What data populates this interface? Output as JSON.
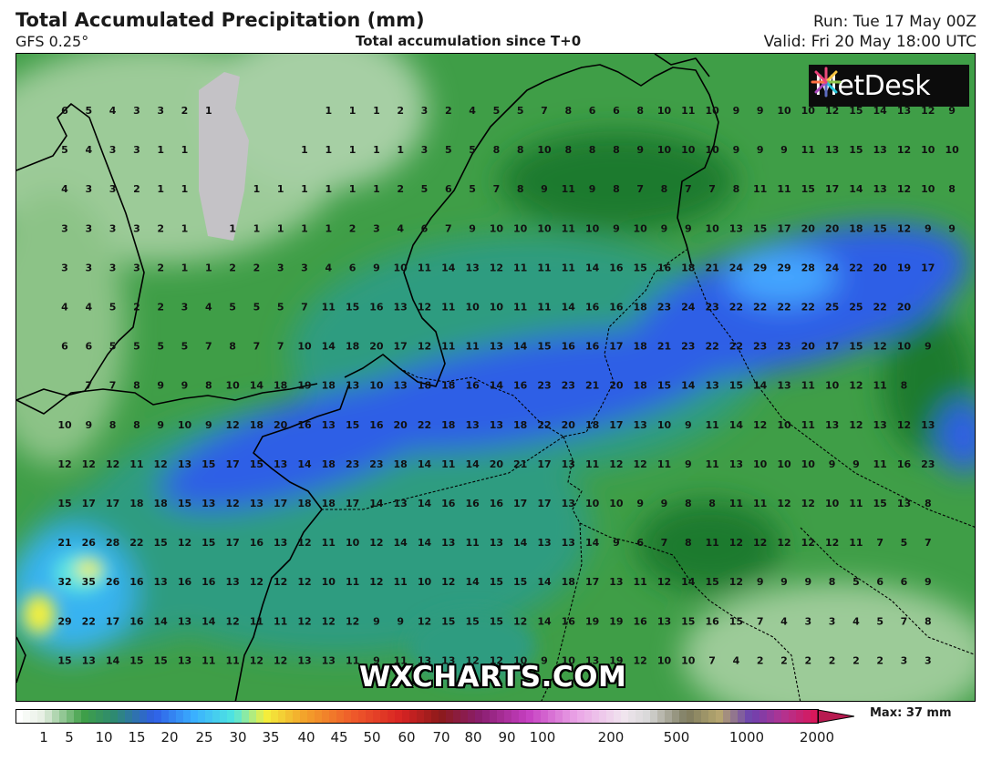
{
  "header": {
    "title": "Total Accumulated Precipitation (mm)",
    "model": "GFS 0.25°",
    "subtitle": "Total accumulation since T+0",
    "run": "Run: Tue 17 May 00Z",
    "valid": "Valid: Fri 20 May 18:00 UTC"
  },
  "logo": {
    "text": "MetDesk",
    "icon": "pinwheel-icon"
  },
  "watermark": "WXCHARTS.COM",
  "legend": {
    "max_label": "Max: 37 mm",
    "ticks": [
      "1",
      "5",
      "10",
      "15",
      "20",
      "25",
      "30",
      "35",
      "40",
      "45",
      "50",
      "60",
      "70",
      "80",
      "90",
      "100",
      "200",
      "500",
      "1000",
      "2000"
    ]
  },
  "colors": {
    "light_green": "#a6cfa4",
    "mid_green": "#3f9e47",
    "dark_green": "#1f7a2f",
    "teal": "#2e9c80",
    "blue": "#2f5ee6",
    "light_blue": "#44a6ff",
    "yellow": "#f4f03c",
    "grey": "#c4c2c6"
  },
  "grid_values": [
    [
      "6",
      "5",
      "4",
      "3",
      "3",
      "2",
      "1",
      "",
      "",
      "",
      "",
      "1",
      "1",
      "1",
      "2",
      "3",
      "2",
      "4",
      "5",
      "5",
      "7",
      "8",
      "6",
      "6",
      "8",
      "10",
      "11",
      "10",
      "9",
      "9",
      "10",
      "10",
      "12",
      "15",
      "14",
      "13",
      "12",
      "9"
    ],
    [
      "5",
      "4",
      "3",
      "3",
      "1",
      "1",
      "",
      "",
      "",
      "",
      "1",
      "1",
      "1",
      "1",
      "1",
      "3",
      "5",
      "5",
      "8",
      "8",
      "10",
      "8",
      "8",
      "8",
      "9",
      "10",
      "10",
      "10",
      "9",
      "9",
      "9",
      "11",
      "13",
      "15",
      "13",
      "12",
      "10",
      "10"
    ],
    [
      "4",
      "3",
      "3",
      "2",
      "1",
      "1",
      "",
      "",
      "1",
      "1",
      "1",
      "1",
      "1",
      "1",
      "2",
      "5",
      "6",
      "5",
      "7",
      "8",
      "9",
      "11",
      "9",
      "8",
      "7",
      "8",
      "7",
      "7",
      "8",
      "11",
      "11",
      "15",
      "17",
      "14",
      "13",
      "12",
      "10",
      "8"
    ],
    [
      "3",
      "3",
      "3",
      "3",
      "2",
      "1",
      "",
      "1",
      "1",
      "1",
      "1",
      "1",
      "2",
      "3",
      "4",
      "6",
      "7",
      "9",
      "10",
      "10",
      "10",
      "11",
      "10",
      "9",
      "10",
      "9",
      "9",
      "10",
      "13",
      "15",
      "17",
      "20",
      "20",
      "18",
      "15",
      "12",
      "9",
      "9"
    ],
    [
      "3",
      "3",
      "3",
      "3",
      "2",
      "1",
      "1",
      "2",
      "2",
      "3",
      "3",
      "4",
      "6",
      "9",
      "10",
      "11",
      "14",
      "13",
      "12",
      "11",
      "11",
      "11",
      "14",
      "16",
      "15",
      "16",
      "18",
      "21",
      "24",
      "29",
      "29",
      "28",
      "24",
      "22",
      "20",
      "19",
      "17",
      ""
    ],
    [
      "4",
      "4",
      "5",
      "2",
      "2",
      "3",
      "4",
      "5",
      "5",
      "5",
      "7",
      "11",
      "15",
      "16",
      "13",
      "12",
      "11",
      "10",
      "10",
      "11",
      "11",
      "14",
      "16",
      "16",
      "18",
      "23",
      "24",
      "23",
      "22",
      "22",
      "22",
      "22",
      "25",
      "25",
      "22",
      "20",
      "",
      ""
    ],
    [
      "6",
      "6",
      "5",
      "5",
      "5",
      "5",
      "7",
      "8",
      "7",
      "7",
      "10",
      "14",
      "18",
      "20",
      "17",
      "12",
      "11",
      "11",
      "13",
      "14",
      "15",
      "16",
      "16",
      "17",
      "18",
      "21",
      "23",
      "22",
      "22",
      "23",
      "23",
      "20",
      "17",
      "15",
      "12",
      "10",
      "9",
      ""
    ],
    [
      "",
      "7",
      "7",
      "8",
      "9",
      "9",
      "8",
      "10",
      "14",
      "18",
      "19",
      "18",
      "13",
      "10",
      "13",
      "18",
      "18",
      "16",
      "14",
      "16",
      "23",
      "23",
      "21",
      "20",
      "18",
      "15",
      "14",
      "13",
      "15",
      "14",
      "13",
      "11",
      "10",
      "12",
      "11",
      "8",
      "",
      ""
    ],
    [
      "10",
      "9",
      "8",
      "8",
      "9",
      "10",
      "9",
      "12",
      "18",
      "20",
      "16",
      "13",
      "15",
      "16",
      "20",
      "22",
      "18",
      "13",
      "13",
      "18",
      "22",
      "20",
      "18",
      "17",
      "13",
      "10",
      "9",
      "11",
      "14",
      "12",
      "10",
      "11",
      "13",
      "12",
      "13",
      "12",
      "13",
      ""
    ],
    [
      "12",
      "12",
      "12",
      "11",
      "12",
      "13",
      "15",
      "17",
      "15",
      "13",
      "14",
      "18",
      "23",
      "23",
      "18",
      "14",
      "11",
      "14",
      "20",
      "21",
      "17",
      "13",
      "11",
      "12",
      "12",
      "11",
      "9",
      "11",
      "13",
      "10",
      "10",
      "10",
      "9",
      "9",
      "11",
      "16",
      "23",
      ""
    ],
    [
      "15",
      "17",
      "17",
      "18",
      "18",
      "15",
      "13",
      "12",
      "13",
      "17",
      "18",
      "18",
      "17",
      "14",
      "13",
      "14",
      "16",
      "16",
      "16",
      "17",
      "17",
      "13",
      "10",
      "10",
      "9",
      "9",
      "8",
      "8",
      "11",
      "11",
      "12",
      "12",
      "10",
      "11",
      "15",
      "13",
      "8",
      ""
    ],
    [
      "21",
      "26",
      "28",
      "22",
      "15",
      "12",
      "15",
      "17",
      "16",
      "13",
      "12",
      "11",
      "10",
      "12",
      "14",
      "14",
      "13",
      "11",
      "13",
      "14",
      "13",
      "13",
      "14",
      "9",
      "6",
      "7",
      "8",
      "11",
      "12",
      "12",
      "12",
      "12",
      "12",
      "11",
      "7",
      "5",
      "7",
      ""
    ],
    [
      "32",
      "35",
      "26",
      "16",
      "13",
      "16",
      "16",
      "13",
      "12",
      "12",
      "12",
      "10",
      "11",
      "12",
      "11",
      "10",
      "12",
      "14",
      "15",
      "15",
      "14",
      "18",
      "17",
      "13",
      "11",
      "12",
      "14",
      "15",
      "12",
      "9",
      "9",
      "9",
      "8",
      "5",
      "6",
      "6",
      "9",
      ""
    ],
    [
      "29",
      "22",
      "17",
      "16",
      "14",
      "13",
      "14",
      "12",
      "11",
      "11",
      "12",
      "12",
      "12",
      "9",
      "9",
      "12",
      "15",
      "15",
      "15",
      "12",
      "14",
      "16",
      "19",
      "19",
      "16",
      "13",
      "15",
      "16",
      "15",
      "7",
      "4",
      "3",
      "3",
      "4",
      "5",
      "7",
      "8",
      ""
    ],
    [
      "15",
      "13",
      "14",
      "15",
      "15",
      "13",
      "11",
      "11",
      "12",
      "12",
      "13",
      "13",
      "11",
      "9",
      "11",
      "13",
      "13",
      "12",
      "12",
      "10",
      "9",
      "10",
      "13",
      "19",
      "12",
      "10",
      "10",
      "7",
      "4",
      "2",
      "2",
      "2",
      "2",
      "2",
      "2",
      "3",
      "3",
      ""
    ]
  ]
}
